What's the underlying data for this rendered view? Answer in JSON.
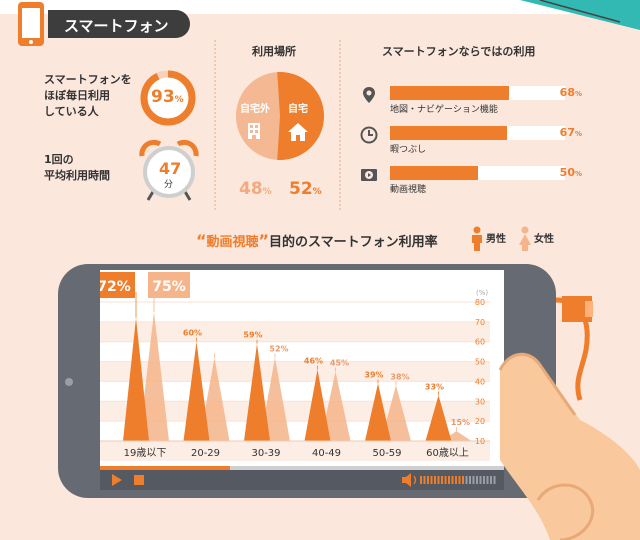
{
  "header": {
    "title": "スマートフォン"
  },
  "usage": {
    "daily_label": [
      "スマートフォンを",
      "ほぼ毎日利用",
      "している人"
    ],
    "daily_pct": 93,
    "daily_pct_text": "93",
    "time_label": [
      "1回の",
      "平均利用時間"
    ],
    "time_value": "47",
    "time_unit": "分",
    "pct_sign": "%"
  },
  "location": {
    "title": "利用場所",
    "outside_label": "自宅外",
    "home_label": "自宅",
    "outside_pct": "48",
    "home_pct": "52"
  },
  "uses": {
    "title": "スマートフォンならではの利用",
    "items": [
      {
        "label": "地図・ナビゲーション機能",
        "value": 68,
        "text": "68",
        "icon": "map-pin-icon"
      },
      {
        "label": "暇つぶし",
        "value": 67,
        "text": "67",
        "icon": "clock-icon"
      },
      {
        "label": "動画視聴",
        "value": 50,
        "text": "50",
        "icon": "video-play-icon"
      }
    ]
  },
  "video_section": {
    "title_mark_open": "“",
    "title_em": "動画視聴",
    "title_mark_close": "”",
    "title_rest": "目的のスマートフォン利用率",
    "legend_male": "男性",
    "legend_female": "女性"
  },
  "chart_data": {
    "type": "area",
    "categories": [
      "19歳以下",
      "20-29",
      "30-39",
      "40-49",
      "50-59",
      "60歳以上"
    ],
    "series": [
      {
        "name": "男性",
        "values": [
          72,
          60,
          59,
          46,
          39,
          33
        ],
        "labels": [
          "72%",
          "60%",
          "59%",
          "46%",
          "39%",
          "33%"
        ]
      },
      {
        "name": "女性",
        "values": [
          75,
          52,
          52,
          45,
          38,
          15
        ],
        "labels": [
          "75%",
          "",
          "52%",
          "45%",
          "38%",
          "15%"
        ]
      }
    ],
    "ylabel": "(%)",
    "ylim": [
      10,
      80
    ],
    "yticks": [
      "80",
      "70",
      "60",
      "50",
      "40",
      "30",
      "20",
      "10"
    ],
    "grid": true,
    "colors": {
      "male": "#ee7d2c",
      "female": "#f5b48a"
    }
  }
}
